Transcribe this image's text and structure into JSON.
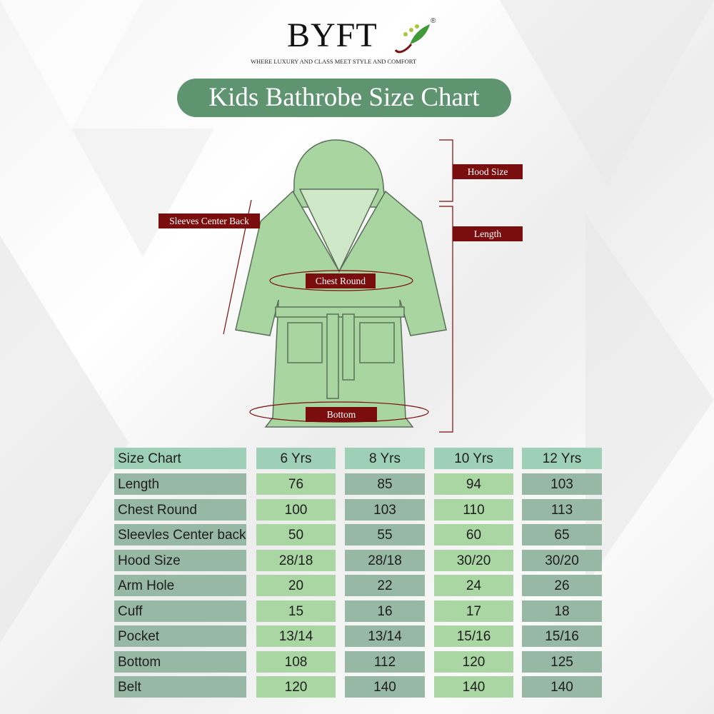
{
  "brand": {
    "name": "BYFT",
    "registered": "®",
    "tagline": "WHERE LUXURY AND CLASS MEET STYLE AND COMFORT"
  },
  "title": "Kids Bathrobe Size Chart",
  "colors": {
    "title_bg": "#5e9470",
    "tag_bg": "#7a0d0d",
    "robe": "#a8d5a0",
    "header": "#9dd0b6",
    "cell_light": "#a9d6a2",
    "cell_dark": "#97b8a5"
  },
  "diagram_labels": {
    "hood": "Hood Size",
    "length": "Length",
    "sleeves": "Sleeves Center Back",
    "chest": "Chest Round",
    "bottom": "Bottom"
  },
  "table": {
    "header": [
      "Size Chart",
      "6 Yrs",
      "8 Yrs",
      "10 Yrs",
      "12 Yrs"
    ],
    "rows": [
      {
        "label": "Length",
        "values": [
          "76",
          "85",
          "94",
          "103"
        ]
      },
      {
        "label": "Chest Round",
        "values": [
          "100",
          "103",
          "110",
          "113"
        ]
      },
      {
        "label": "Sleevles Center back",
        "values": [
          "50",
          "55",
          "60",
          "65"
        ]
      },
      {
        "label": "Hood Size",
        "values": [
          "28/18",
          "28/18",
          "30/20",
          "30/20"
        ]
      },
      {
        "label": "Arm Hole",
        "values": [
          "20",
          "22",
          "24",
          "26"
        ]
      },
      {
        "label": "Cuff",
        "values": [
          "15",
          "16",
          "17",
          "18"
        ]
      },
      {
        "label": "Pocket",
        "values": [
          "13/14",
          "13/14",
          "15/16",
          "15/16"
        ]
      },
      {
        "label": "Bottom",
        "values": [
          "108",
          "112",
          "120",
          "125"
        ]
      },
      {
        "label": "Belt",
        "values": [
          "120",
          "140",
          "140",
          "140"
        ]
      }
    ]
  }
}
